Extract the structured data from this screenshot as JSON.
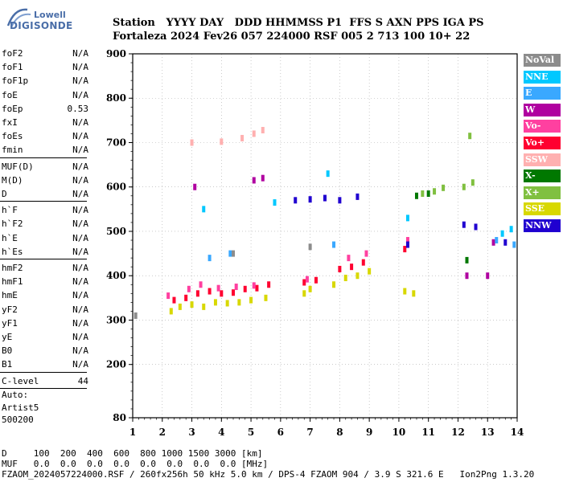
{
  "logo": {
    "line1": "Lowell",
    "line2": "DIGISONDE"
  },
  "header": {
    "line1": "Station   YYYY DAY   DDD HHMMSS P1  FFS S AXN PPS IGA PS",
    "line2": "Fortaleza 2024 Fev26 057 224000 RSF 005 2 713 100 10+ 22"
  },
  "params": [
    {
      "label": "foF2",
      "value": "N/A"
    },
    {
      "label": "foF1",
      "value": "N/A"
    },
    {
      "label": "foF1p",
      "value": "N/A"
    },
    {
      "label": "foE",
      "value": "N/A"
    },
    {
      "label": "foEp",
      "value": "0.53"
    },
    {
      "label": "fxI",
      "value": "N/A"
    },
    {
      "label": "foEs",
      "value": "N/A"
    },
    {
      "label": "fmin",
      "value": "N/A"
    },
    {
      "label": "MUF(D)",
      "value": "N/A"
    },
    {
      "label": "M(D)",
      "value": "N/A"
    },
    {
      "label": "D",
      "value": "N/A"
    },
    {
      "label": "h`F",
      "value": "N/A"
    },
    {
      "label": "h`F2",
      "value": "N/A"
    },
    {
      "label": "h`E",
      "value": "N/A"
    },
    {
      "label": "h`Es",
      "value": "N/A"
    },
    {
      "label": "hmF2",
      "value": "N/A"
    },
    {
      "label": "hmF1",
      "value": "N/A"
    },
    {
      "label": "hmE",
      "value": "N/A"
    },
    {
      "label": "yF2",
      "value": "N/A"
    },
    {
      "label": "yF1",
      "value": "N/A"
    },
    {
      "label": "yE",
      "value": "N/A"
    },
    {
      "label": "B0",
      "value": "N/A"
    },
    {
      "label": "B1",
      "value": "N/A"
    },
    {
      "label": "C-level",
      "value": "44"
    }
  ],
  "auto": {
    "line1": "Auto:",
    "line2": "Artist5",
    "line3": "500200"
  },
  "legend": [
    {
      "label": "NoVal",
      "color": "#8c8c8c"
    },
    {
      "label": "NNE",
      "color": "#00c8ff"
    },
    {
      "label": "E",
      "color": "#3aa8ff"
    },
    {
      "label": "W",
      "color": "#b000a0"
    },
    {
      "label": "Vo-",
      "color": "#ff40a0"
    },
    {
      "label": "Vo+",
      "color": "#ff0030"
    },
    {
      "label": "SSW",
      "color": "#ffb0b0"
    },
    {
      "label": "X-",
      "color": "#007800"
    },
    {
      "label": "X+",
      "color": "#80c040"
    },
    {
      "label": "SSE",
      "color": "#d8d800"
    },
    {
      "label": "NNW",
      "color": "#2000d0"
    }
  ],
  "bottom": {
    "line1": "D     100  200  400  600  800 1000 1500 3000 [km]",
    "line2": "MUF   0.0  0.0  0.0  0.0  0.0  0.0  0.0  0.0 [MHz]",
    "line3": "FZAOM_2024057224000.RSF / 260fx256h 50 kHz 5.0 km / DPS-4 FZAOM 904 / 3.9 S 321.6 E   Ion2Png 1.3.20"
  },
  "chart_data": {
    "type": "scatter",
    "xlim": [
      1,
      14
    ],
    "ylim": [
      80,
      900
    ],
    "x_ticks": [
      "1",
      "2",
      "3",
      "4",
      "5",
      "6",
      "7",
      "8",
      "9",
      "10",
      "11",
      "12",
      "13",
      "14"
    ],
    "y_ticks": [
      "80",
      "200",
      "300",
      "400",
      "500",
      "600",
      "700",
      "800",
      "900"
    ],
    "grid": true,
    "series": [
      {
        "name": "SSE",
        "points": [
          [
            2.3,
            320
          ],
          [
            2.6,
            330
          ],
          [
            3.0,
            335
          ],
          [
            3.4,
            330
          ],
          [
            3.8,
            340
          ],
          [
            4.2,
            338
          ],
          [
            4.6,
            340
          ],
          [
            5.0,
            345
          ],
          [
            5.5,
            350
          ],
          [
            6.8,
            360
          ],
          [
            7.0,
            370
          ],
          [
            7.8,
            380
          ],
          [
            8.2,
            395
          ],
          [
            8.6,
            400
          ],
          [
            9.0,
            410
          ],
          [
            10.2,
            365
          ],
          [
            10.5,
            360
          ]
        ]
      },
      {
        "name": "Vo+",
        "points": [
          [
            2.4,
            345
          ],
          [
            2.8,
            350
          ],
          [
            3.2,
            360
          ],
          [
            3.6,
            365
          ],
          [
            4.0,
            360
          ],
          [
            4.4,
            362
          ],
          [
            4.8,
            370
          ],
          [
            5.2,
            372
          ],
          [
            5.6,
            380
          ],
          [
            6.8,
            385
          ],
          [
            7.2,
            390
          ],
          [
            8.0,
            415
          ],
          [
            8.4,
            420
          ],
          [
            8.8,
            430
          ],
          [
            10.2,
            460
          ]
        ]
      },
      {
        "name": "Vo-",
        "points": [
          [
            2.2,
            355
          ],
          [
            2.9,
            370
          ],
          [
            3.3,
            380
          ],
          [
            3.9,
            372
          ],
          [
            4.5,
            375
          ],
          [
            5.1,
            378
          ],
          [
            6.9,
            392
          ],
          [
            8.3,
            440
          ],
          [
            8.9,
            450
          ],
          [
            10.3,
            480
          ]
        ]
      },
      {
        "name": "NNW",
        "points": [
          [
            6.5,
            570
          ],
          [
            7.0,
            572
          ],
          [
            7.5,
            575
          ],
          [
            8.0,
            570
          ],
          [
            8.6,
            578
          ],
          [
            12.2,
            515
          ],
          [
            12.6,
            510
          ],
          [
            13.6,
            475
          ],
          [
            10.3,
            470
          ]
        ]
      },
      {
        "name": "X+",
        "points": [
          [
            10.8,
            585
          ],
          [
            11.2,
            590
          ],
          [
            11.5,
            598
          ],
          [
            12.2,
            600
          ],
          [
            12.5,
            610
          ],
          [
            12.4,
            715
          ]
        ]
      },
      {
        "name": "X-",
        "points": [
          [
            10.6,
            580
          ],
          [
            11.0,
            585
          ],
          [
            12.3,
            435
          ]
        ]
      },
      {
        "name": "SSW",
        "points": [
          [
            3.0,
            700
          ],
          [
            4.0,
            702
          ],
          [
            4.7,
            710
          ],
          [
            5.1,
            720
          ],
          [
            5.4,
            728
          ]
        ]
      },
      {
        "name": "W",
        "points": [
          [
            3.1,
            600
          ],
          [
            5.1,
            615
          ],
          [
            5.4,
            620
          ],
          [
            12.3,
            400
          ],
          [
            13.0,
            400
          ],
          [
            13.2,
            475
          ]
        ]
      },
      {
        "name": "NNE",
        "points": [
          [
            3.4,
            550
          ],
          [
            5.8,
            565
          ],
          [
            7.6,
            630
          ],
          [
            13.5,
            495
          ],
          [
            13.8,
            505
          ],
          [
            10.3,
            530
          ]
        ]
      },
      {
        "name": "E",
        "points": [
          [
            3.6,
            440
          ],
          [
            4.3,
            450
          ],
          [
            7.8,
            470
          ],
          [
            13.3,
            480
          ],
          [
            13.9,
            470
          ]
        ]
      },
      {
        "name": "NoVal",
        "points": [
          [
            1.1,
            310
          ],
          [
            4.4,
            450
          ],
          [
            7.0,
            465
          ]
        ]
      }
    ]
  }
}
